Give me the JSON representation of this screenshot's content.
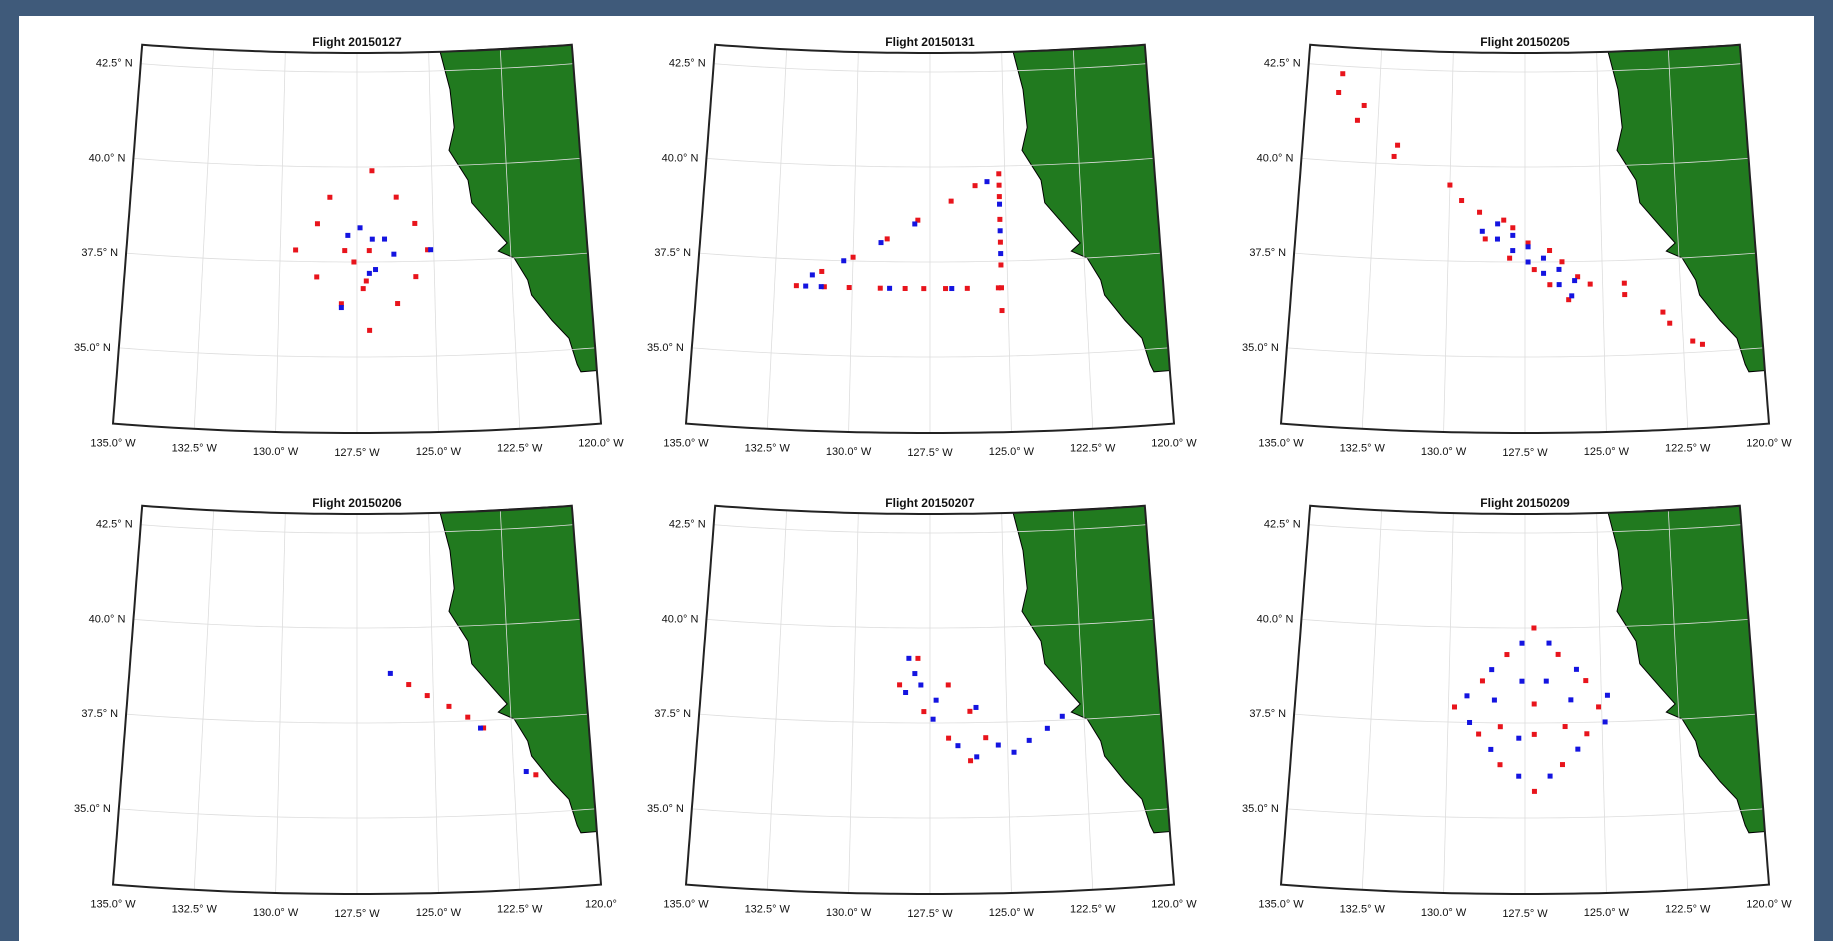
{
  "chart_data": [
    {
      "type": "scatter",
      "title": "Flight 20150127",
      "xlim": [
        -135,
        -120
      ],
      "ylim": [
        33,
        43
      ],
      "xticks": [
        {
          "value": -135,
          "label": "135.0° W"
        },
        {
          "value": -132.5,
          "label": "132.5° W"
        },
        {
          "value": -130,
          "label": "130.0° W"
        },
        {
          "value": -127.5,
          "label": "127.5° W"
        },
        {
          "value": -125,
          "label": "125.0° W"
        },
        {
          "value": -122.5,
          "label": "122.5° W"
        },
        {
          "value": -120,
          "label": "120.0° W"
        }
      ],
      "yticks": [
        {
          "value": 35,
          "label": "35.0° N"
        },
        {
          "value": 37.5,
          "label": "37.5° N"
        },
        {
          "value": 40,
          "label": "40.0° N"
        },
        {
          "value": 42.5,
          "label": "42.5° N"
        }
      ],
      "grid": true,
      "series": [
        {
          "color": "#e8141c",
          "x": [
            -127,
            -126.2,
            -128.4,
            -128.8,
            -125.6,
            -129.5,
            -127.9,
            -127.1,
            -125.2,
            -127.6,
            -127.2,
            -128.8,
            -125.6,
            -127.3,
            -128.0,
            -126.2,
            -127.1
          ],
          "values": [
            39.9,
            39.2,
            39.2,
            38.5,
            38.5,
            37.8,
            37.8,
            37.8,
            37.8,
            37.5,
            37.0,
            37.1,
            37.1,
            36.8,
            36.4,
            36.4,
            35.7
          ]
        },
        {
          "color": "#1414e0",
          "x": [
            -127.4,
            -127.8,
            -126.6,
            -126.3,
            -127.1,
            -126.9,
            -128.0,
            -125.1,
            -127.0
          ],
          "values": [
            38.4,
            38.2,
            38.1,
            37.7,
            37.2,
            37.3,
            36.3,
            37.8,
            38.1
          ]
        }
      ]
    },
    {
      "type": "scatter",
      "title": "Flight 20150131",
      "xlim": [
        -135,
        -120
      ],
      "ylim": [
        33,
        43
      ],
      "xticks": [
        {
          "value": -135,
          "label": "135.0° W"
        },
        {
          "value": -132.5,
          "label": "132.5° W"
        },
        {
          "value": -130,
          "label": "130.0° W"
        },
        {
          "value": -127.5,
          "label": "127.5° W"
        },
        {
          "value": -125,
          "label": "125.0° W"
        },
        {
          "value": -122.5,
          "label": "122.5° W"
        },
        {
          "value": -120,
          "label": "120.0° W"
        }
      ],
      "yticks": [
        {
          "value": 35,
          "label": "35.0° N"
        },
        {
          "value": 37.5,
          "label": "37.5° N"
        },
        {
          "value": 40,
          "label": "40.0° N"
        },
        {
          "value": 42.5,
          "label": "42.5° N"
        }
      ],
      "grid": true,
      "series": [
        {
          "color": "#e8141c",
          "x": [
            -131.8,
            -130.9,
            -130.1,
            -129.1,
            -128.3,
            -127.7,
            -127.0,
            -126.3,
            -125.3,
            -125.2,
            -125.2,
            -125.2,
            -125.2,
            -125.2,
            -125.2,
            -125.2,
            -125.2,
            -131.0,
            -130.0,
            -128.9,
            -127.9,
            -126.8,
            -126.0
          ],
          "values": [
            36.8,
            36.8,
            36.8,
            36.8,
            36.8,
            36.8,
            36.8,
            36.8,
            36.8,
            36.2,
            36.8,
            37.4,
            38.0,
            38.6,
            39.2,
            39.5,
            39.8,
            37.2,
            37.6,
            38.1,
            38.6,
            39.1,
            39.5
          ]
        },
        {
          "color": "#1414e0",
          "x": [
            -131.5,
            -131.0,
            -128.8,
            -126.8,
            -125.2,
            -125.2,
            -125.2,
            -131.3,
            -130.3,
            -129.1,
            -128.0,
            -125.6
          ],
          "values": [
            36.8,
            36.8,
            36.8,
            36.8,
            37.7,
            38.3,
            39.0,
            37.1,
            37.5,
            38.0,
            38.5,
            39.6
          ]
        }
      ]
    },
    {
      "type": "scatter",
      "title": "Flight 20150205",
      "xlim": [
        -135,
        -120
      ],
      "ylim": [
        33,
        43
      ],
      "xticks": [
        {
          "value": -135,
          "label": "135.0° W"
        },
        {
          "value": -132.5,
          "label": "132.5° W"
        },
        {
          "value": -130,
          "label": "130.0° W"
        },
        {
          "value": -127.5,
          "label": "127.5° W"
        },
        {
          "value": -125,
          "label": "125.0° W"
        },
        {
          "value": -122.5,
          "label": "122.5° W"
        },
        {
          "value": -120,
          "label": "120.0° W"
        }
      ],
      "yticks": [
        {
          "value": 35,
          "label": "35.0° N"
        },
        {
          "value": 37.5,
          "label": "37.5° N"
        },
        {
          "value": 40,
          "label": "40.0° N"
        },
        {
          "value": 42.5,
          "label": "42.5° N"
        }
      ],
      "grid": true,
      "series": [
        {
          "color": "#e8141c",
          "x": [
            -133.8,
            -133.9,
            -133.0,
            -133.2,
            -131.8,
            -131.9,
            -130.0,
            -129.6,
            -129.0,
            -128.2,
            -127.9,
            -127.4,
            -126.7,
            -126.3,
            -125.8,
            -125.4,
            -124.3,
            -124.3,
            -123.1,
            -122.9,
            -122.2,
            -121.9,
            -128.8,
            -128.0,
            -127.2,
            -126.7,
            -126.1
          ],
          "values": [
            42.3,
            41.8,
            41.5,
            41.1,
            40.5,
            40.2,
            39.5,
            39.1,
            38.8,
            38.6,
            38.4,
            38.0,
            37.8,
            37.5,
            37.1,
            36.9,
            36.9,
            36.6,
            36.1,
            35.8,
            35.3,
            35.2,
            38.1,
            37.6,
            37.3,
            36.9,
            36.5
          ]
        },
        {
          "color": "#1414e0",
          "x": [
            -128.9,
            -128.4,
            -127.9,
            -127.4,
            -126.9,
            -126.4,
            -128.4,
            -127.9,
            -127.4,
            -126.9,
            -126.4,
            -125.9,
            -126.0
          ],
          "values": [
            38.3,
            38.1,
            37.8,
            37.5,
            37.2,
            36.9,
            38.5,
            38.2,
            37.9,
            37.6,
            37.3,
            37.0,
            36.6
          ]
        }
      ]
    },
    {
      "type": "scatter",
      "title": "Flight 20150206",
      "xlim": [
        -135,
        -120
      ],
      "ylim": [
        33,
        43
      ],
      "xticks": [
        {
          "value": -135,
          "label": "135.0° W"
        },
        {
          "value": -132.5,
          "label": "132.5° W"
        },
        {
          "value": -130,
          "label": "130.0° W"
        },
        {
          "value": -127.5,
          "label": "127.5° W"
        },
        {
          "value": -125,
          "label": "125.0° W"
        },
        {
          "value": -122.5,
          "label": "122.5° W"
        },
        {
          "value": -120,
          "label": "120.0°"
        }
      ],
      "yticks": [
        {
          "value": 35,
          "label": "35.0° N"
        },
        {
          "value": 37.5,
          "label": "37.5° N"
        },
        {
          "value": 40,
          "label": "40.0° N"
        },
        {
          "value": 42.5,
          "label": "42.5° N"
        }
      ],
      "grid": true,
      "series": [
        {
          "color": "#e8141c",
          "x": [
            -125.8,
            -125.2,
            -124.5,
            -123.9,
            -123.4,
            -121.8
          ],
          "values": [
            38.5,
            38.2,
            37.9,
            37.6,
            37.3,
            36.0
          ]
        },
        {
          "color": "#1414e0",
          "x": [
            -126.4,
            -122.1,
            -123.5
          ],
          "values": [
            38.8,
            36.1,
            37.3
          ]
        }
      ]
    },
    {
      "type": "scatter",
      "title": "Flight 20150207",
      "xlim": [
        -135,
        -120
      ],
      "ylim": [
        33,
        43
      ],
      "xticks": [
        {
          "value": -135,
          "label": "135.0° W"
        },
        {
          "value": -132.5,
          "label": "132.5° W"
        },
        {
          "value": -130,
          "label": "130.0° W"
        },
        {
          "value": -127.5,
          "label": "127.5° W"
        },
        {
          "value": -125,
          "label": "125.0° W"
        },
        {
          "value": -122.5,
          "label": "122.5° W"
        },
        {
          "value": -120,
          "label": "120.0° W"
        }
      ],
      "yticks": [
        {
          "value": 35,
          "label": "35.0° N"
        },
        {
          "value": 37.5,
          "label": "37.5° N"
        },
        {
          "value": 40,
          "label": "40.0° N"
        },
        {
          "value": 42.5,
          "label": "42.5° N"
        }
      ],
      "grid": true,
      "series": [
        {
          "color": "#e8141c",
          "x": [
            -127.9,
            -128.5,
            -126.9,
            -127.7,
            -126.2,
            -126.9,
            -125.7,
            -126.2
          ],
          "values": [
            39.2,
            38.5,
            38.5,
            37.8,
            37.8,
            37.1,
            37.1,
            36.5
          ]
        },
        {
          "color": "#1414e0",
          "x": [
            -128.2,
            -128.0,
            -127.8,
            -128.3,
            -127.3,
            -127.4,
            -126.6,
            -126.0,
            -125.3,
            -124.8,
            -124.3,
            -123.7,
            -123.2,
            -126.0
          ],
          "values": [
            39.2,
            38.8,
            38.5,
            38.3,
            38.1,
            37.6,
            36.9,
            36.6,
            36.9,
            36.7,
            37.0,
            37.3,
            37.6,
            37.9
          ]
        }
      ]
    },
    {
      "type": "scatter",
      "title": "Flight 20150209",
      "xlim": [
        -135,
        -120
      ],
      "ylim": [
        33,
        43
      ],
      "xticks": [
        {
          "value": -135,
          "label": "135.0° W"
        },
        {
          "value": -132.5,
          "label": "132.5° W"
        },
        {
          "value": -130,
          "label": "130.0° W"
        },
        {
          "value": -127.5,
          "label": "127.5° W"
        },
        {
          "value": -125,
          "label": "125.0° W"
        },
        {
          "value": -122.5,
          "label": "122.5° W"
        },
        {
          "value": -120,
          "label": "120.0° W"
        }
      ],
      "yticks": [
        {
          "value": 35,
          "label": "35.0° N"
        },
        {
          "value": 37.5,
          "label": "37.5° N"
        },
        {
          "value": 40,
          "label": "40.0° N"
        },
        {
          "value": 42.5,
          "label": "42.5° N"
        }
      ],
      "grid": true,
      "series": [
        {
          "color": "#e8141c",
          "x": [
            -127.2,
            -126.4,
            -128.1,
            -128.9,
            -125.5,
            -129.8,
            -127.2,
            -125.1,
            -128.3,
            -126.2,
            -129.0,
            -125.5,
            -128.3,
            -126.3,
            -127.2,
            -127.2
          ],
          "values": [
            40.0,
            39.3,
            39.3,
            38.6,
            38.6,
            37.9,
            38.0,
            37.9,
            37.4,
            37.4,
            37.2,
            37.2,
            36.4,
            36.4,
            35.7,
            37.2
          ]
        },
        {
          "color": "#1414e0",
          "x": [
            -127.6,
            -126.7,
            -128.6,
            -125.8,
            -129.4,
            -124.8,
            -127.6,
            -126.8,
            -128.5,
            -126.0,
            -129.3,
            -124.9,
            -128.6,
            -125.8,
            -127.7,
            -126.7,
            -127.7
          ],
          "values": [
            39.6,
            39.6,
            38.9,
            38.9,
            38.2,
            38.2,
            38.6,
            38.6,
            38.1,
            38.1,
            37.5,
            37.5,
            36.8,
            36.8,
            36.1,
            36.1,
            37.1
          ]
        }
      ]
    }
  ]
}
